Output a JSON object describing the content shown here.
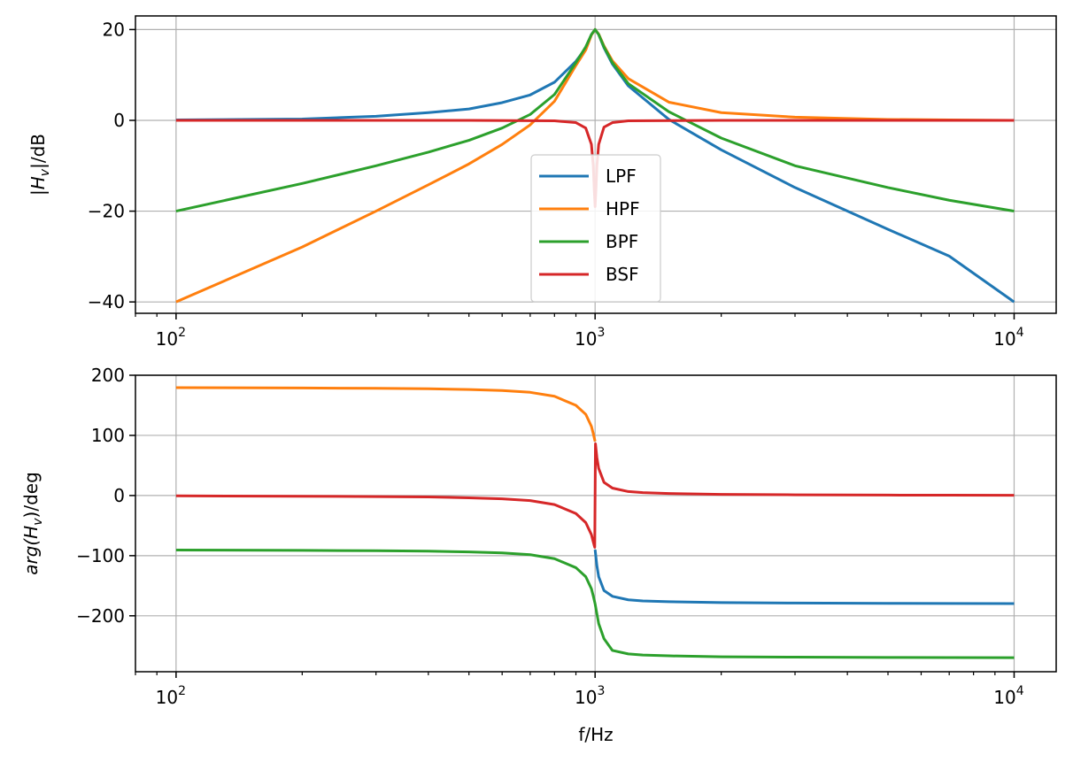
{
  "chart_data": [
    {
      "type": "line",
      "title": "",
      "xlabel": "",
      "ylabel": "|H_v|/dB",
      "ylabel_parts": [
        "|",
        "H",
        "v",
        "|/dB"
      ],
      "xscale": "log",
      "xlim": [
        80,
        12600
      ],
      "ylim": [
        -42.5,
        23
      ],
      "xticks": [
        100,
        1000,
        10000
      ],
      "xtick_base": [
        "10",
        "10",
        "10"
      ],
      "xtick_exp": [
        "2",
        "3",
        "4"
      ],
      "yticks": [
        20,
        0,
        -20,
        -40
      ],
      "ytick_labels": [
        "20",
        "0",
        "−20",
        "−40"
      ],
      "grid": true,
      "legend": {
        "placement": "lower-center",
        "entries": [
          "LPF",
          "HPF",
          "BPF",
          "BSF"
        ]
      },
      "series": [
        {
          "name": "LPF",
          "color": "#1f77b4",
          "x": [
            100,
            200,
            300,
            400,
            500,
            600,
            700,
            800,
            900,
            950,
            980,
            1000,
            1020,
            1050,
            1100,
            1200,
            1500,
            2000,
            3000,
            5000,
            7000,
            10000
          ],
          "y": [
            0.1,
            0.3,
            0.9,
            1.7,
            2.5,
            3.9,
            5.6,
            8.4,
            13.0,
            15.9,
            18.9,
            20.0,
            18.9,
            16.0,
            12.4,
            7.6,
            0.2,
            -6.5,
            -14.8,
            -24.0,
            -29.9,
            -40.0
          ]
        },
        {
          "name": "HPF",
          "color": "#ff7f0e",
          "x": [
            100,
            200,
            300,
            400,
            500,
            600,
            700,
            800,
            900,
            950,
            980,
            1000,
            1020,
            1050,
            1100,
            1200,
            1500,
            2000,
            3000,
            5000,
            7000,
            10000
          ],
          "y": [
            -40.0,
            -27.9,
            -20.0,
            -14.2,
            -9.6,
            -5.3,
            -1.0,
            4.2,
            12.1,
            15.5,
            18.8,
            20.0,
            19.0,
            16.4,
            13.1,
            9.2,
            4.0,
            1.7,
            0.7,
            0.2,
            0.1,
            0.0
          ]
        },
        {
          "name": "BPF",
          "color": "#2ca02c",
          "x": [
            100,
            200,
            300,
            400,
            500,
            600,
            700,
            800,
            900,
            950,
            980,
            1000,
            1020,
            1050,
            1100,
            1200,
            1500,
            2000,
            3000,
            5000,
            7000,
            10000
          ],
          "y": [
            -20.0,
            -13.9,
            -10.0,
            -7.0,
            -4.4,
            -1.7,
            1.3,
            5.7,
            12.7,
            16.2,
            18.9,
            20.0,
            18.9,
            16.2,
            12.7,
            8.1,
            1.9,
            -3.9,
            -10.0,
            -14.8,
            -17.6,
            -20.0
          ]
        },
        {
          "name": "BSF",
          "color": "#d62728",
          "x": [
            100,
            500,
            800,
            900,
            950,
            980,
            990,
            995,
            1000,
            1005,
            1010,
            1020,
            1050,
            1100,
            1200,
            2000,
            10000
          ],
          "y": [
            0.0,
            0.0,
            -0.1,
            -0.5,
            -1.7,
            -5.3,
            -10.0,
            -15.0,
            -19.0,
            -15.0,
            -10.0,
            -5.3,
            -1.5,
            -0.5,
            -0.1,
            0.0,
            0.0
          ]
        }
      ]
    },
    {
      "type": "line",
      "title": "",
      "xlabel": "f/Hz",
      "ylabel": "arg(H_v)/deg",
      "ylabel_parts": [
        "arg(",
        "H",
        "v",
        ")/deg"
      ],
      "xscale": "log",
      "xlim": [
        80,
        12600
      ],
      "ylim": [
        -293,
        200
      ],
      "xticks": [
        100,
        1000,
        10000
      ],
      "xtick_base": [
        "10",
        "10",
        "10"
      ],
      "xtick_exp": [
        "2",
        "3",
        "4"
      ],
      "yticks": [
        200,
        100,
        0,
        -100,
        -200
      ],
      "ytick_labels": [
        "200",
        "100",
        "0",
        "−100",
        "−200"
      ],
      "grid": true,
      "series": [
        {
          "name": "LPF",
          "color": "#1f77b4",
          "x": [
            1000,
            1010,
            1020,
            1050,
            1100,
            1200,
            1300,
            1500,
            2000,
            3000,
            5000,
            7000,
            10000
          ],
          "y": [
            -90,
            -117,
            -135,
            -158,
            -167.6,
            -173.4,
            -175.2,
            -176.6,
            -178.1,
            -178.8,
            -179.3,
            -179.5,
            -179.6
          ]
        },
        {
          "name": "HPF",
          "color": "#ff7f0e",
          "x": [
            100,
            200,
            300,
            400,
            500,
            600,
            700,
            800,
            900,
            950,
            980,
            990,
            1000
          ],
          "y": [
            179.4,
            178.8,
            178.2,
            177.6,
            176.2,
            174.6,
            171.6,
            165.0,
            150.0,
            135.0,
            115.0,
            103.0,
            90.0
          ]
        },
        {
          "name": "BPF",
          "color": "#2ca02c",
          "x": [
            100,
            200,
            300,
            400,
            500,
            600,
            700,
            800,
            900,
            950,
            980,
            990,
            1000,
            1010,
            1020,
            1050,
            1100,
            1200,
            1300,
            1500,
            2000,
            3000,
            5000,
            7000,
            10000
          ],
          "y": [
            -90.6,
            -91.2,
            -91.8,
            -92.4,
            -93.8,
            -95.4,
            -98.4,
            -105.0,
            -120.0,
            -135.0,
            -155.0,
            -167.0,
            -180.0,
            -197.0,
            -213.0,
            -238.0,
            -257.6,
            -263.4,
            -265.2,
            -266.6,
            -268.1,
            -268.8,
            -269.3,
            -269.5,
            -269.6
          ]
        },
        {
          "name": "BSF",
          "color": "#d62728",
          "x": [
            100,
            200,
            300,
            400,
            500,
            600,
            700,
            800,
            900,
            950,
            980,
            990,
            998,
            1000,
            1002,
            1010,
            1020,
            1050,
            1100,
            1200,
            1300,
            1500,
            2000,
            3000,
            5000,
            7000,
            10000
          ],
          "y": [
            -0.6,
            -1.2,
            -1.8,
            -2.4,
            -3.8,
            -5.4,
            -8.4,
            -15.0,
            -30.0,
            -45.0,
            -65.0,
            -77.0,
            -86.0,
            0,
            86.0,
            63.0,
            45.0,
            22.0,
            12.4,
            6.6,
            4.8,
            3.4,
            1.9,
            1.2,
            0.7,
            0.5,
            0.4
          ]
        }
      ]
    }
  ]
}
